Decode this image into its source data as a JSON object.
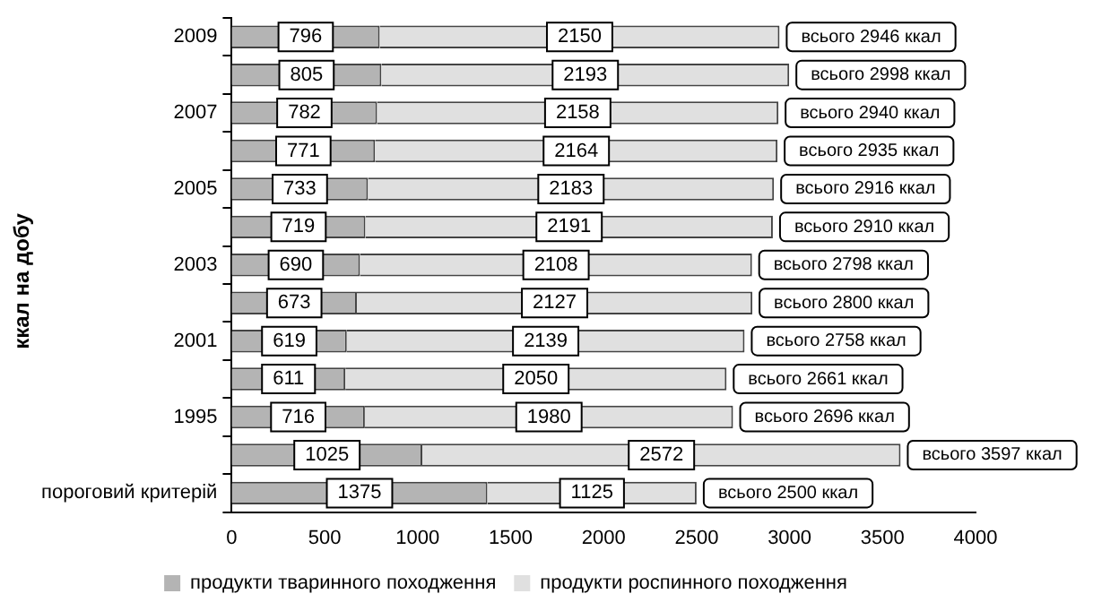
{
  "chart_data": {
    "type": "bar",
    "orientation": "horizontal",
    "stacked": true,
    "ylabel": "ккал на добу",
    "categories": [
      "2009",
      null,
      "2007",
      null,
      "2005",
      null,
      "2003",
      null,
      "2001",
      null,
      "1995",
      null,
      "пороговий критерій"
    ],
    "series": [
      {
        "name": "продукти тваринного походження",
        "color": "#b4b4b4",
        "values": [
          796,
          805,
          782,
          771,
          733,
          719,
          690,
          673,
          619,
          611,
          716,
          1025,
          1375
        ]
      },
      {
        "name": "продукти роспинного походження",
        "color": "#e0e0e0",
        "values": [
          2150,
          2193,
          2158,
          2164,
          2183,
          2191,
          2108,
          2127,
          2139,
          2050,
          1980,
          2572,
          1125
        ]
      }
    ],
    "totals": [
      "всього 2946 ккал",
      "всього 2998 ккал",
      "всього 2940 ккал",
      "всього 2935 ккал",
      "всього 2916 ккал",
      "всього 2910 ккал",
      "всього 2798 ккал",
      "всього 2800 ккал",
      "всього 2758 ккал",
      "всього 2661 ккал",
      "всього 2696 ккал",
      "всього 3597 ккал",
      "всього 2500 ккал"
    ],
    "xlim": [
      0,
      4000
    ],
    "xticks": [
      0,
      500,
      1000,
      1500,
      2000,
      2500,
      3000,
      3500,
      4000
    ],
    "data_labels": true,
    "legend": "bottom",
    "grid": false
  }
}
